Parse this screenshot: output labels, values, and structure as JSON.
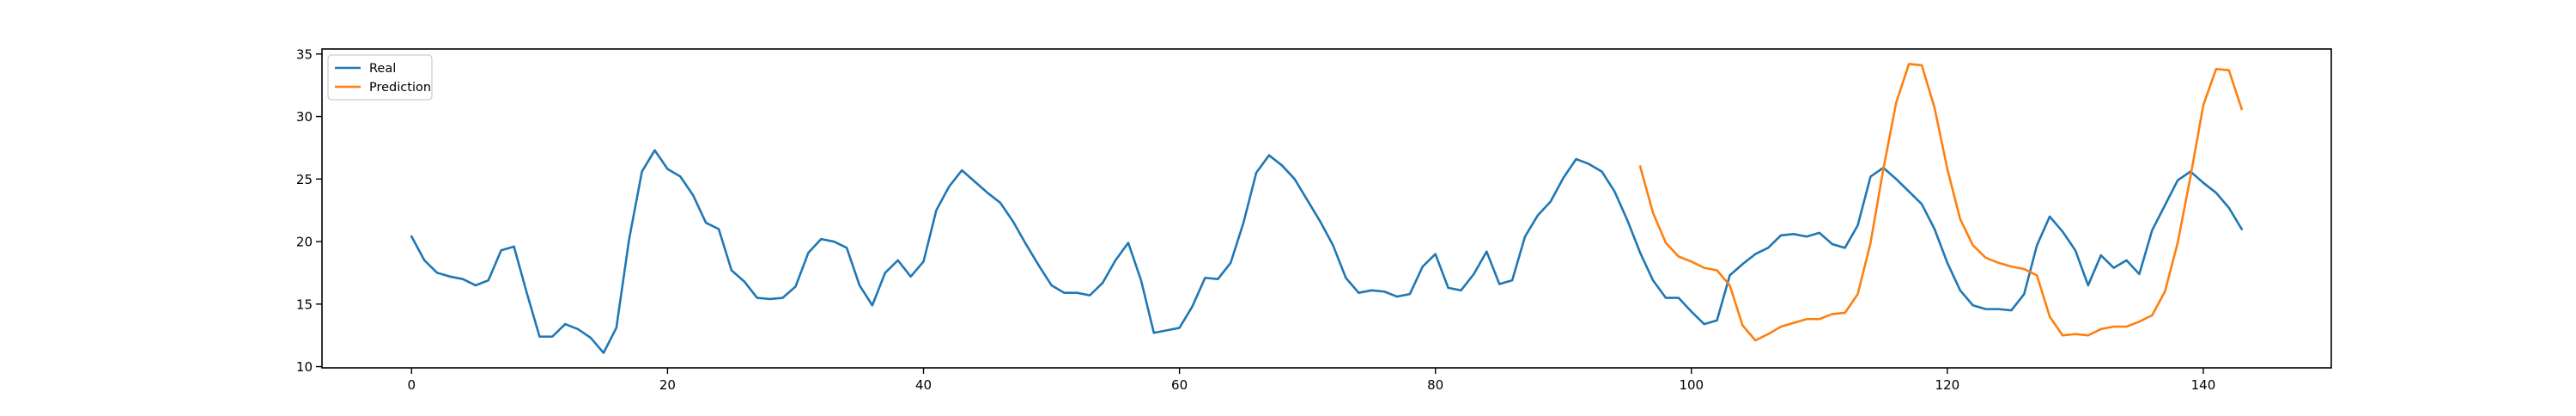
{
  "chart_data": {
    "type": "line",
    "title": "",
    "xlabel": "",
    "ylabel": "",
    "xlim": [
      -7,
      150
    ],
    "ylim": [
      9.9,
      35.4
    ],
    "xticks": [
      0,
      20,
      40,
      60,
      80,
      100,
      120,
      140
    ],
    "yticks": [
      10,
      15,
      20,
      25,
      30,
      35
    ],
    "grid": false,
    "legend": {
      "placement": "top-left",
      "entries": [
        "Real",
        "Prediction"
      ]
    },
    "series": [
      {
        "name": "Real",
        "color": "#1f77b4",
        "x": [
          0,
          1,
          2,
          3,
          4,
          5,
          6,
          7,
          8,
          9,
          10,
          11,
          12,
          13,
          14,
          15,
          16,
          17,
          18,
          19,
          20,
          21,
          22,
          23,
          24,
          25,
          26,
          27,
          28,
          29,
          30,
          31,
          32,
          33,
          34,
          35,
          36,
          37,
          38,
          39,
          40,
          41,
          42,
          43,
          44,
          45,
          46,
          47,
          48,
          49,
          50,
          51,
          52,
          53,
          54,
          55,
          56,
          57,
          58,
          59,
          60,
          61,
          62,
          63,
          64,
          65,
          66,
          67,
          68,
          69,
          70,
          71,
          72,
          73,
          74,
          75,
          76,
          77,
          78,
          79,
          80,
          81,
          82,
          83,
          84,
          85,
          86,
          87,
          88,
          89,
          90,
          91,
          92,
          93,
          94,
          95,
          96,
          97,
          98,
          99,
          100,
          101,
          102,
          103,
          104,
          105,
          106,
          107,
          108,
          109,
          110,
          111,
          112,
          113,
          114,
          115,
          116,
          117,
          118,
          119,
          120,
          121,
          122,
          123,
          124,
          125,
          126,
          127,
          128,
          129,
          130,
          131,
          132,
          133,
          134,
          135,
          136,
          137,
          138,
          139,
          140,
          141,
          142,
          143
        ],
        "values": [
          20.4,
          18.5,
          17.5,
          17.2,
          17.0,
          16.5,
          16.9,
          19.3,
          19.6,
          15.9,
          12.4,
          12.4,
          13.4,
          13.0,
          12.3,
          11.1,
          13.1,
          20.2,
          25.6,
          27.3,
          25.8,
          25.2,
          23.7,
          21.5,
          21.0,
          17.7,
          16.8,
          15.5,
          15.4,
          15.5,
          16.4,
          19.1,
          20.2,
          20.0,
          19.5,
          16.5,
          14.9,
          17.5,
          18.5,
          17.2,
          18.4,
          22.5,
          24.4,
          25.7,
          24.8,
          23.9,
          23.1,
          21.6,
          19.8,
          18.1,
          16.5,
          15.9,
          15.9,
          15.7,
          16.7,
          18.5,
          19.9,
          16.9,
          12.7,
          12.9,
          13.1,
          14.8,
          17.1,
          17.0,
          18.3,
          21.5,
          25.5,
          26.9,
          26.1,
          25.0,
          23.3,
          21.6,
          19.7,
          17.1,
          15.9,
          16.1,
          16.0,
          15.6,
          15.8,
          18.0,
          19.0,
          16.3,
          16.1,
          17.4,
          19.2,
          16.6,
          16.9,
          20.4,
          22.1,
          23.2,
          25.1,
          26.6,
          26.2,
          25.6,
          24.0,
          21.7,
          19.1,
          16.9,
          15.5,
          15.5,
          14.4,
          13.4,
          13.7,
          17.3,
          18.2,
          19.0,
          19.5,
          20.5,
          20.6,
          20.4,
          20.7,
          19.8,
          19.5,
          21.3,
          25.2,
          25.9,
          25.0,
          24.0,
          23.0,
          21.0,
          18.3,
          16.1,
          14.9,
          14.6,
          14.6,
          14.5,
          15.8,
          19.7,
          22.0,
          20.8,
          19.3,
          16.5,
          18.9,
          17.9,
          18.5,
          17.4,
          20.9,
          22.9,
          24.9,
          25.6,
          24.7,
          23.9,
          22.7,
          21.0
        ]
      },
      {
        "name": "Prediction",
        "color": "#ff7f0e",
        "x": [
          96,
          97,
          98,
          99,
          100,
          101,
          102,
          103,
          104,
          105,
          106,
          107,
          108,
          109,
          110,
          111,
          112,
          113,
          114,
          115,
          116,
          117,
          118,
          119,
          120,
          121,
          122,
          123,
          124,
          125,
          126,
          127,
          128,
          129,
          130,
          131,
          132,
          133,
          134,
          135,
          136,
          137,
          138,
          139,
          140,
          141,
          142,
          143
        ],
        "values": [
          26.0,
          22.3,
          19.9,
          18.8,
          18.4,
          17.9,
          17.7,
          16.5,
          13.3,
          12.1,
          12.6,
          13.2,
          13.5,
          13.8,
          13.8,
          14.2,
          14.3,
          15.8,
          19.9,
          25.8,
          31.1,
          34.2,
          34.1,
          30.7,
          25.8,
          21.8,
          19.7,
          18.7,
          18.3,
          18.0,
          17.8,
          17.3,
          14.0,
          12.5,
          12.6,
          12.5,
          13.0,
          13.2,
          13.2,
          13.6,
          14.1,
          16.0,
          19.9,
          25.2,
          30.9,
          33.8,
          33.7,
          30.6
        ]
      }
    ]
  }
}
